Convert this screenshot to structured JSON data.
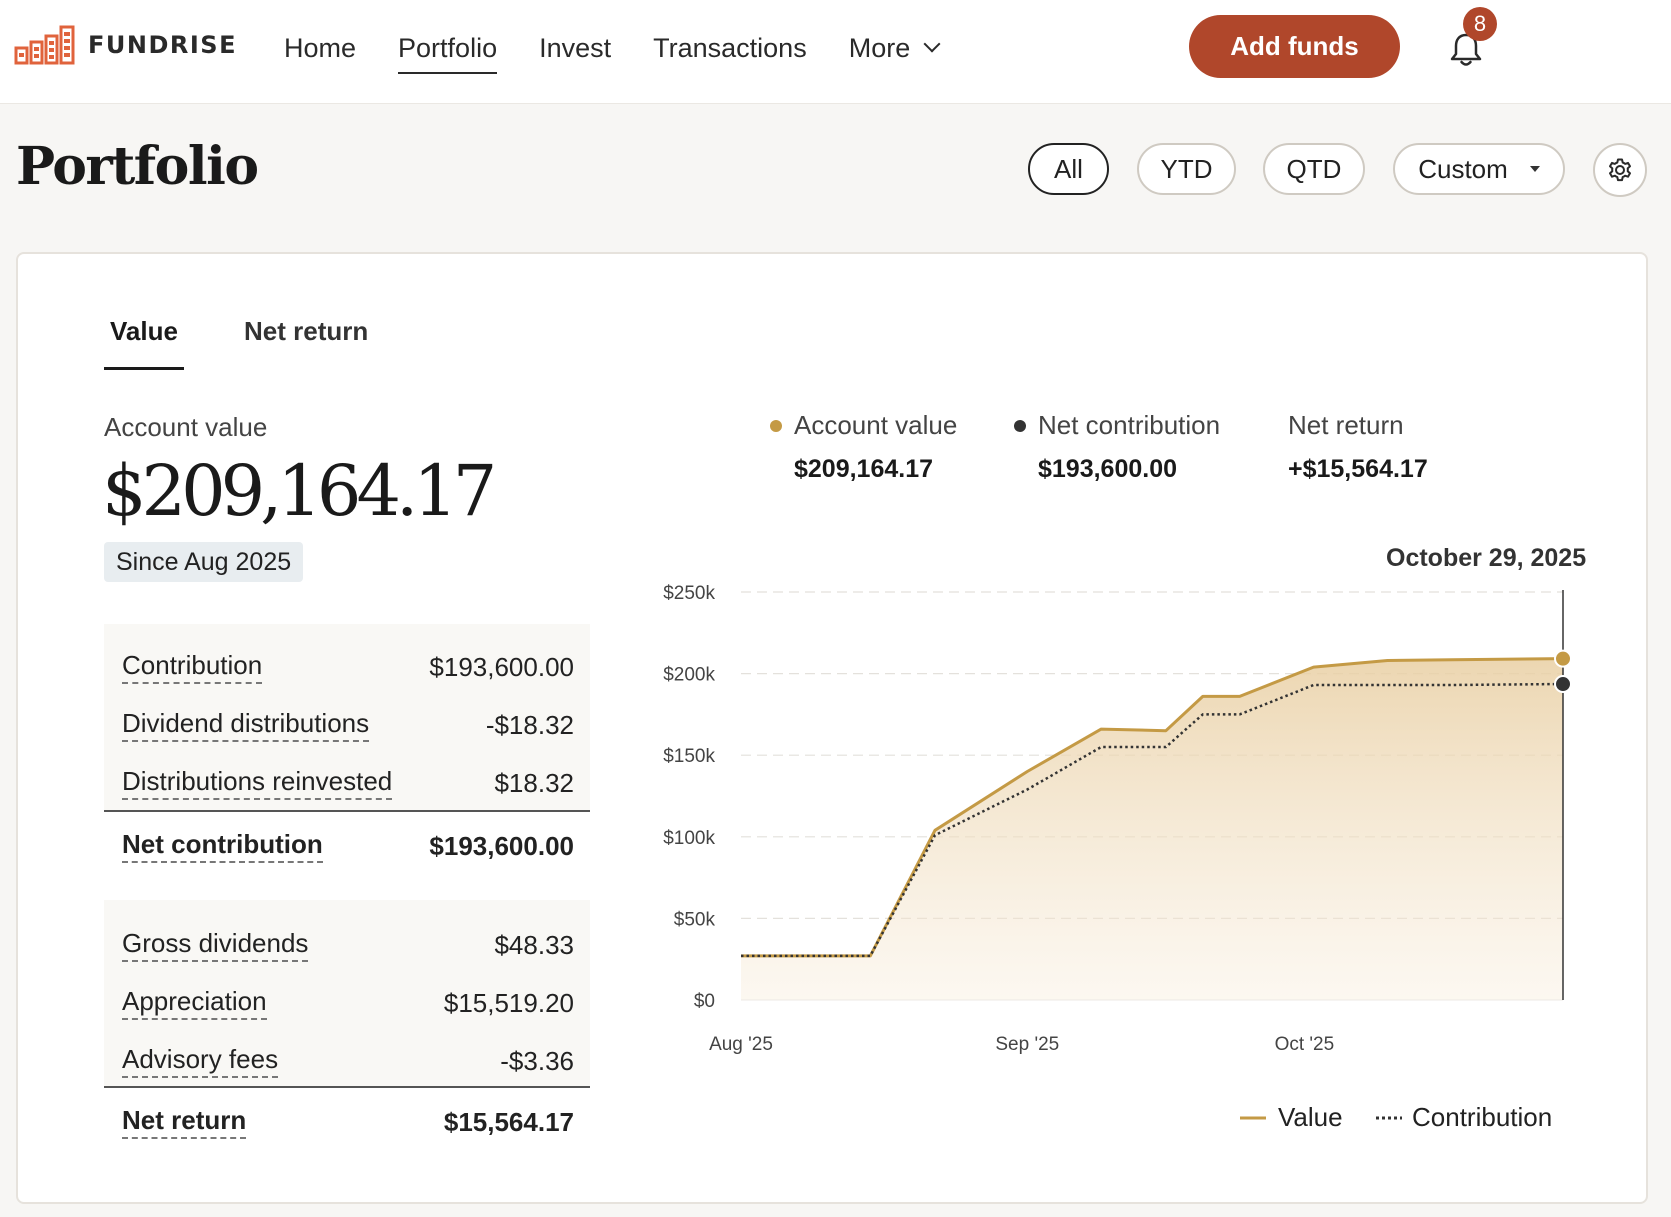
{
  "header": {
    "brand": "FUNDRISE",
    "nav": [
      {
        "label": "Home",
        "active": false
      },
      {
        "label": "Portfolio",
        "active": true
      },
      {
        "label": "Invest",
        "active": false
      },
      {
        "label": "Transactions",
        "active": false
      },
      {
        "label": "More",
        "active": false
      }
    ],
    "add_funds_label": "Add funds",
    "notification_count": "8",
    "accent_color": "#b0472b"
  },
  "page": {
    "title": "Portfolio",
    "filters": [
      {
        "label": "All",
        "active": true
      },
      {
        "label": "YTD",
        "active": false
      },
      {
        "label": "QTD",
        "active": false
      },
      {
        "label": "Custom",
        "active": false
      }
    ]
  },
  "tabs": [
    {
      "label": "Value",
      "active": true
    },
    {
      "label": "Net return",
      "active": false
    }
  ],
  "summary": {
    "account_value_label": "Account value",
    "account_value": "$209,164.17",
    "since_label": "Since Aug 2025"
  },
  "breakdown": {
    "contribution_group": [
      {
        "label": "Contribution",
        "value": "$193,600.00"
      },
      {
        "label": "Dividend distributions",
        "value": "-$18.32"
      },
      {
        "label": "Distributions reinvested",
        "value": "$18.32"
      }
    ],
    "net_contribution": {
      "label": "Net contribution",
      "value": "$193,600.00"
    },
    "return_group": [
      {
        "label": "Gross dividends",
        "value": "$48.33"
      },
      {
        "label": "Appreciation",
        "value": "$15,519.20"
      },
      {
        "label": "Advisory fees",
        "value": "-$3.36"
      }
    ],
    "net_return": {
      "label": "Net return",
      "value": "$15,564.17"
    }
  },
  "legend_top": [
    {
      "label": "Account value",
      "value": "$209,164.17",
      "color": "#c49a45"
    },
    {
      "label": "Net contribution",
      "value": "$193,600.00",
      "color": "#333333"
    },
    {
      "label": "Net return",
      "value": "+$15,564.17",
      "color": ""
    }
  ],
  "chart_data": {
    "type": "area",
    "hover_date": "October 29, 2025",
    "ylim": [
      0,
      250000
    ],
    "y_ticks": [
      {
        "value": 0,
        "label": "$0"
      },
      {
        "value": 50000,
        "label": "$50k"
      },
      {
        "value": 100000,
        "label": "$100k"
      },
      {
        "value": 150000,
        "label": "$150k"
      },
      {
        "value": 200000,
        "label": "$200k"
      },
      {
        "value": 250000,
        "label": "$250k"
      }
    ],
    "x_range": [
      "2025-08-01",
      "2025-10-29"
    ],
    "x_ticks": [
      {
        "date": "2025-08-01",
        "label": "Aug '25"
      },
      {
        "date": "2025-09-01",
        "label": "Sep '25"
      },
      {
        "date": "2025-10-01",
        "label": "Oct '25"
      }
    ],
    "grid": true,
    "series": [
      {
        "name": "Value",
        "color": "#c49a45",
        "style": "solid",
        "points": [
          [
            "2025-08-01",
            27000
          ],
          [
            "2025-08-15",
            27000
          ],
          [
            "2025-08-22",
            104000
          ],
          [
            "2025-09-01",
            140000
          ],
          [
            "2025-09-09",
            166000
          ],
          [
            "2025-09-16",
            165000
          ],
          [
            "2025-09-20",
            186000
          ],
          [
            "2025-09-24",
            186000
          ],
          [
            "2025-10-02",
            204000
          ],
          [
            "2025-10-10",
            208000
          ],
          [
            "2025-10-17",
            208500
          ],
          [
            "2025-10-29",
            209164
          ]
        ]
      },
      {
        "name": "Contribution",
        "color": "#333333",
        "style": "dotted",
        "points": [
          [
            "2025-08-01",
            27000
          ],
          [
            "2025-08-15",
            27000
          ],
          [
            "2025-08-22",
            101000
          ],
          [
            "2025-09-01",
            129000
          ],
          [
            "2025-09-09",
            155000
          ],
          [
            "2025-09-16",
            155000
          ],
          [
            "2025-09-20",
            175000
          ],
          [
            "2025-09-24",
            175000
          ],
          [
            "2025-10-02",
            193000
          ],
          [
            "2025-10-10",
            193000
          ],
          [
            "2025-10-17",
            193000
          ],
          [
            "2025-10-29",
            193600
          ]
        ]
      }
    ]
  },
  "legend_bottom": [
    {
      "label": "Value"
    },
    {
      "label": "Contribution"
    }
  ]
}
